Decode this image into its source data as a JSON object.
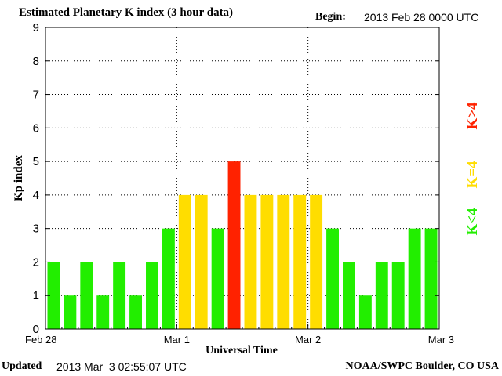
{
  "header": {
    "title": "Estimated Planetary K index (3 hour data)",
    "begin_label": "Begin:",
    "begin_value": "2013 Feb 28 0000 UTC"
  },
  "footer": {
    "updated_label": "Updated",
    "updated_value": "2013 Mar  3 02:55:07 UTC",
    "source": "NOAA/SWPC Boulder, CO USA"
  },
  "legend": [
    {
      "label": "K<4",
      "color": "#22ee00"
    },
    {
      "label": "K=4",
      "color": "#ffdd00"
    },
    {
      "label": "K>4",
      "color": "#ff2200"
    }
  ],
  "chart_data": {
    "type": "bar",
    "title": "Estimated Planetary K index (3 hour data)",
    "xlabel": "Universal Time",
    "ylabel": "Kp index",
    "ylim": [
      0,
      9
    ],
    "yticks": [
      0,
      1,
      2,
      3,
      4,
      5,
      6,
      7,
      8,
      9
    ],
    "xticks": [
      "Feb 28",
      "Mar 1",
      "Mar 2",
      "Mar 3"
    ],
    "bars_per_day": 8,
    "grid": "dotted",
    "values": [
      2,
      1,
      2,
      1,
      2,
      1,
      2,
      3,
      4,
      4,
      3,
      5,
      4,
      4,
      4,
      4,
      4,
      3,
      2,
      1,
      2,
      2,
      3,
      3
    ],
    "colors": {
      "low": "#22ee00",
      "equal": "#ffdd00",
      "high": "#ff2200"
    }
  }
}
